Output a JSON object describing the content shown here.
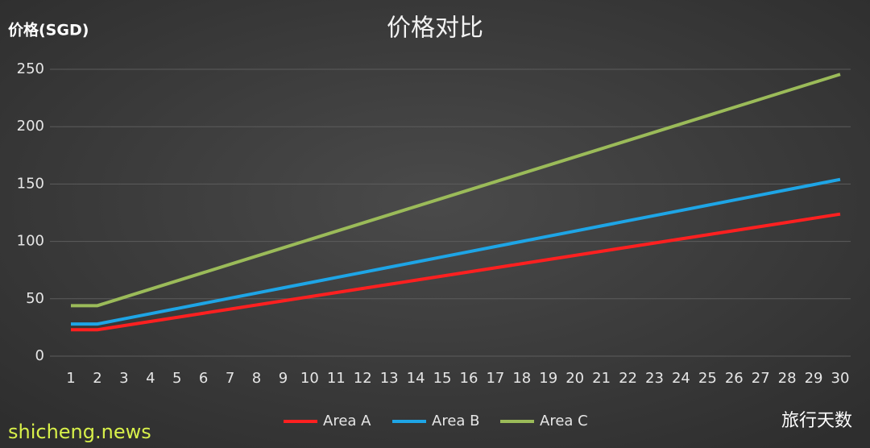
{
  "chart_data": {
    "type": "line",
    "title": "价格对比",
    "y_label": "价格(SGD)",
    "x_label": "旅行天数",
    "watermark": "shicheng.news",
    "categories": [
      "1",
      "2",
      "3",
      "4",
      "5",
      "6",
      "7",
      "8",
      "9",
      "10",
      "11",
      "12",
      "13",
      "14",
      "15",
      "16",
      "17",
      "18",
      "19",
      "20",
      "21",
      "22",
      "23",
      "24",
      "25",
      "26",
      "27",
      "28",
      "29",
      "30"
    ],
    "series": [
      {
        "name": "Area A",
        "color": "#ff2020",
        "values": [
          23,
          23,
          26.6,
          30.2,
          33.8,
          37.4,
          41,
          44.6,
          48.2,
          51.8,
          55.4,
          59,
          62.6,
          66.2,
          69.8,
          73.4,
          77,
          80.6,
          84.2,
          87.8,
          91.4,
          95,
          98.6,
          102.2,
          105.8,
          109.4,
          113,
          116.6,
          120.2,
          123.8
        ]
      },
      {
        "name": "Area B",
        "color": "#1ea5e6",
        "values": [
          28,
          28,
          32.5,
          37,
          41.5,
          46,
          50.5,
          55,
          59.5,
          64,
          68.5,
          73,
          77.5,
          82,
          86.5,
          91,
          95.5,
          100,
          104.5,
          109,
          113.5,
          118,
          122.5,
          127,
          131.5,
          136,
          140.5,
          145,
          149.5,
          154
        ]
      },
      {
        "name": "Area C",
        "color": "#9bbb59",
        "values": [
          44,
          44,
          51.2,
          58.4,
          65.6,
          72.8,
          80,
          87.2,
          94.4,
          101.6,
          108.8,
          116,
          123.2,
          130.4,
          137.6,
          144.8,
          152,
          159.2,
          166.4,
          173.6,
          180.8,
          188,
          195.2,
          202.4,
          209.6,
          216.8,
          224,
          231.2,
          238.4,
          245.6
        ]
      }
    ],
    "ylim": [
      0,
      250
    ],
    "yticks": [
      0,
      50,
      100,
      150,
      200,
      250
    ],
    "grid": true,
    "legend": "bottom"
  }
}
